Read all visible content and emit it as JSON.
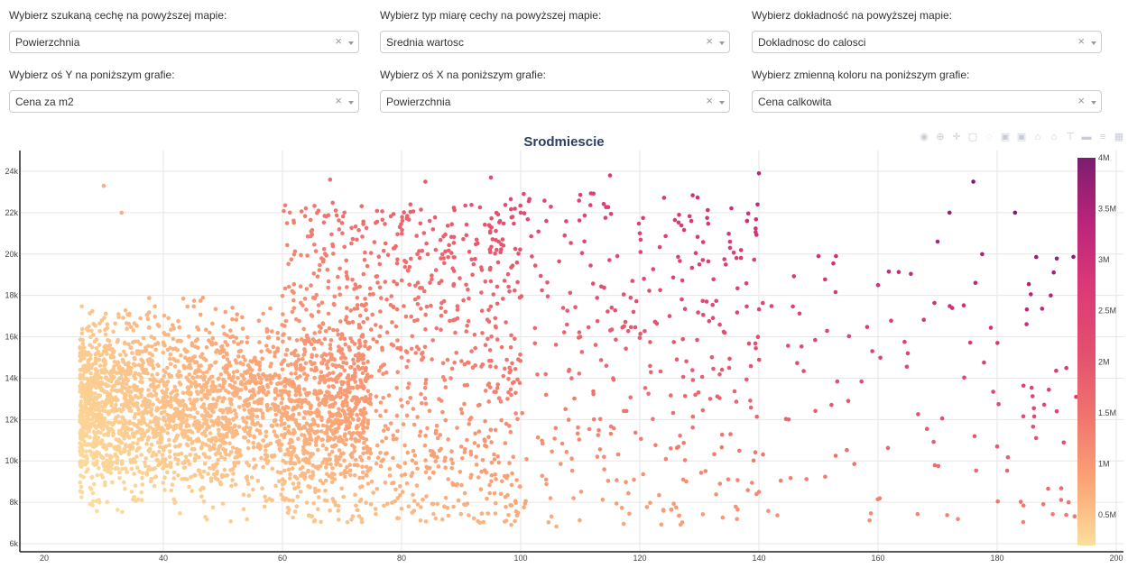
{
  "controls": [
    {
      "label": "Wybierz szukaną cechę na powyższej mapie:",
      "value": "Powierzchnia"
    },
    {
      "label": "Wybierz typ miarę cechy na powyższej mapie:",
      "value": "Srednia wartosc"
    },
    {
      "label": "Wybierz dokładność na powyższej mapie:",
      "value": "Dokladnosc do calosci"
    },
    {
      "label": "Wybierz oś Y na poniższym grafie:",
      "value": "Cena za m2"
    },
    {
      "label": "Wybierz oś X na poniższym grafie:",
      "value": "Powierzchnia"
    },
    {
      "label": "Wybierz zmienną koloru na poniższym grafie:",
      "value": "Cena calkowita"
    }
  ],
  "icons": {
    "clear": "×",
    "modebar": [
      "camera-icon",
      "zoom-icon",
      "pan-icon",
      "box-select-icon",
      "lasso-icon",
      "zoom-in-icon",
      "zoom-out-icon",
      "autoscale-icon",
      "reset-axes-icon",
      "spike-lines-icon",
      "hover-closest-icon",
      "hover-compare-icon",
      "plotly-logo-icon"
    ]
  },
  "chart_data": {
    "type": "scatter",
    "title": "Srodmiescie",
    "xlabel": "",
    "ylabel": "",
    "xlim": [
      18,
      200
    ],
    "ylim": [
      5800,
      24800
    ],
    "x_ticks": [
      20,
      40,
      60,
      80,
      100,
      120,
      140,
      160,
      180,
      200
    ],
    "y_ticks": [
      6000,
      8000,
      10000,
      12000,
      14000,
      16000,
      18000,
      20000,
      22000,
      24000
    ],
    "y_tick_labels": [
      "6k",
      "8k",
      "10k",
      "12k",
      "14k",
      "16k",
      "18k",
      "20k",
      "22k",
      "24k"
    ],
    "colorbar": {
      "range": [
        200000,
        4000000
      ],
      "ticks": [
        500000,
        1000000,
        1500000,
        2000000,
        2500000,
        3000000,
        3500000,
        4000000
      ],
      "tick_labels": [
        "0.5M",
        "1M",
        "1.5M",
        "2M",
        "2.5M",
        "3M",
        "3.5M",
        "4M"
      ],
      "colors": [
        "#fcde9c",
        "#faa476",
        "#f0746e",
        "#e34f6f",
        "#dc3977",
        "#b9257a",
        "#7c1d6f"
      ]
    },
    "sample_points": [
      [
        26,
        14000
      ],
      [
        28,
        12000
      ],
      [
        30,
        23300
      ],
      [
        33,
        22000
      ],
      [
        35,
        10000
      ],
      [
        38,
        16000
      ],
      [
        40,
        12000
      ],
      [
        42,
        8000
      ],
      [
        45,
        15000
      ],
      [
        50,
        11000
      ],
      [
        55,
        14000
      ],
      [
        60,
        13000
      ],
      [
        65,
        17000
      ],
      [
        68,
        23600
      ],
      [
        70,
        21500
      ],
      [
        75,
        9000
      ],
      [
        80,
        15000
      ],
      [
        84,
        23500
      ],
      [
        90,
        12500
      ],
      [
        95,
        23700
      ],
      [
        100,
        22000
      ],
      [
        105,
        8200
      ],
      [
        110,
        16000
      ],
      [
        115,
        23800
      ],
      [
        120,
        21000
      ],
      [
        125,
        17000
      ],
      [
        130,
        19500
      ],
      [
        135,
        14500
      ],
      [
        138,
        21600
      ],
      [
        140,
        23900
      ],
      [
        140,
        8500
      ],
      [
        145,
        12000
      ],
      [
        150,
        19900
      ],
      [
        155,
        12900
      ],
      [
        160,
        18500
      ],
      [
        165,
        15200
      ],
      [
        170,
        20600
      ],
      [
        172,
        22000
      ],
      [
        176,
        23500
      ],
      [
        180,
        10700
      ],
      [
        183,
        22000
      ],
      [
        189,
        18000
      ],
      [
        190,
        12400
      ],
      [
        192,
        8000
      ]
    ],
    "bulk_clusters": [
      {
        "x_range": [
          26,
          75
        ],
        "y_range": [
          6800,
          20000
        ],
        "count": 2600
      },
      {
        "x_range": [
          60,
          100
        ],
        "y_range": [
          7000,
          22500
        ],
        "count": 900
      },
      {
        "x_range": [
          95,
          140
        ],
        "y_range": [
          6800,
          23000
        ],
        "count": 350
      },
      {
        "x_range": [
          140,
          195
        ],
        "y_range": [
          7000,
          20000
        ],
        "count": 110
      }
    ]
  }
}
